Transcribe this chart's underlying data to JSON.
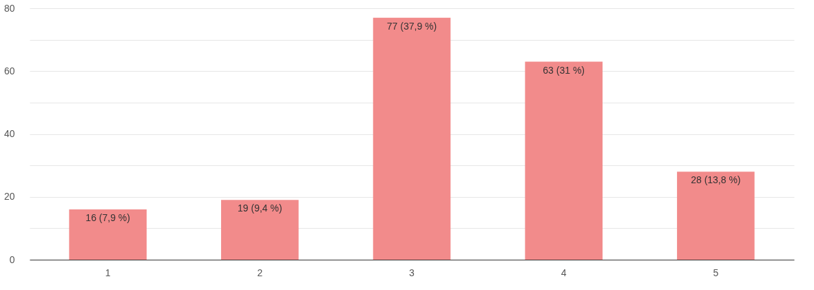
{
  "chart_data": {
    "type": "bar",
    "categories": [
      "1",
      "2",
      "3",
      "4",
      "5"
    ],
    "values": [
      16,
      19,
      77,
      63,
      28
    ],
    "value_labels": [
      "16 (7,9 %)",
      "19 (9,4 %)",
      "77 (37,9 %)",
      "63 (31 %)",
      "28 (13,8 %)"
    ],
    "color": "#f28b8b",
    "ylim": [
      0,
      80
    ],
    "yticks": [
      0,
      {
        "value": 10,
        "label": null
      },
      20,
      {
        "value": 30,
        "label": null
      },
      40,
      {
        "value": 50,
        "label": null
      },
      60,
      {
        "value": 70,
        "label": null
      },
      80
    ],
    "grid": "y"
  }
}
